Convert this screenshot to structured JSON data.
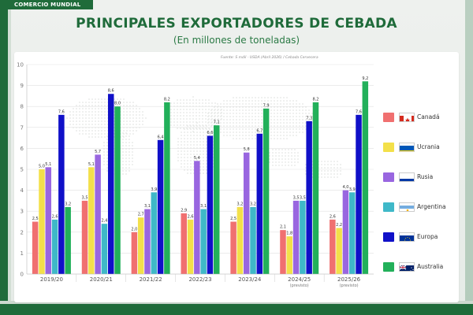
{
  "header": {
    "badge": "COMERCIO MUNDIAL",
    "title": "PRINCIPALES EXPORTADORES DE CEBADA",
    "subtitle": "(En millones de toneladas)"
  },
  "source_note": "Fuente: S mdil - USDA (Abril 2026) / Cebada Cervecera",
  "chart_data": {
    "type": "bar",
    "title": "PRINCIPALES EXPORTADORES DE CEBADA",
    "subtitle": "(En millones de toneladas)",
    "categories": [
      "2019/20",
      "2020/21",
      "2021/22",
      "2022/23",
      "2023/24",
      "2024/25",
      "2025/26"
    ],
    "category_sublabels": [
      "",
      "",
      "",
      "",
      "",
      "(previsto)",
      "(previsto)"
    ],
    "ylim": [
      0,
      10
    ],
    "yticks": [
      0,
      1,
      2,
      3,
      4,
      5,
      6,
      7,
      8,
      9,
      10
    ],
    "grid": true,
    "legend_position": "right",
    "series": [
      {
        "name": "Canadá",
        "color": "#f07070",
        "flag_icon": "canada-flag-icon",
        "values": [
          2.5,
          3.5,
          2.0,
          2.9,
          2.5,
          2.1,
          2.6
        ]
      },
      {
        "name": "Ucrania",
        "color": "#f3e04a",
        "flag_icon": "ukraine-flag-icon",
        "values": [
          5.0,
          5.1,
          2.7,
          2.6,
          3.2,
          1.8,
          2.2
        ]
      },
      {
        "name": "Rusia",
        "color": "#9966e0",
        "flag_icon": "russia-flag-icon",
        "values": [
          5.1,
          5.7,
          3.1,
          5.4,
          5.8,
          3.5,
          4.0
        ]
      },
      {
        "name": "Argentina",
        "color": "#3fb8c8",
        "flag_icon": "argentina-flag-icon",
        "values": [
          2.6,
          2.4,
          3.9,
          3.1,
          3.2,
          3.5,
          3.9
        ]
      },
      {
        "name": "Europa",
        "color": "#1010c8",
        "flag_icon": "eu-flag-icon",
        "values": [
          7.6,
          8.6,
          6.4,
          6.6,
          6.7,
          7.3,
          7.6
        ]
      },
      {
        "name": "Australia",
        "color": "#22b05a",
        "flag_icon": "australia-flag-icon",
        "values": [
          3.2,
          8.0,
          8.2,
          7.1,
          7.9,
          8.2,
          9.2
        ]
      }
    ]
  }
}
